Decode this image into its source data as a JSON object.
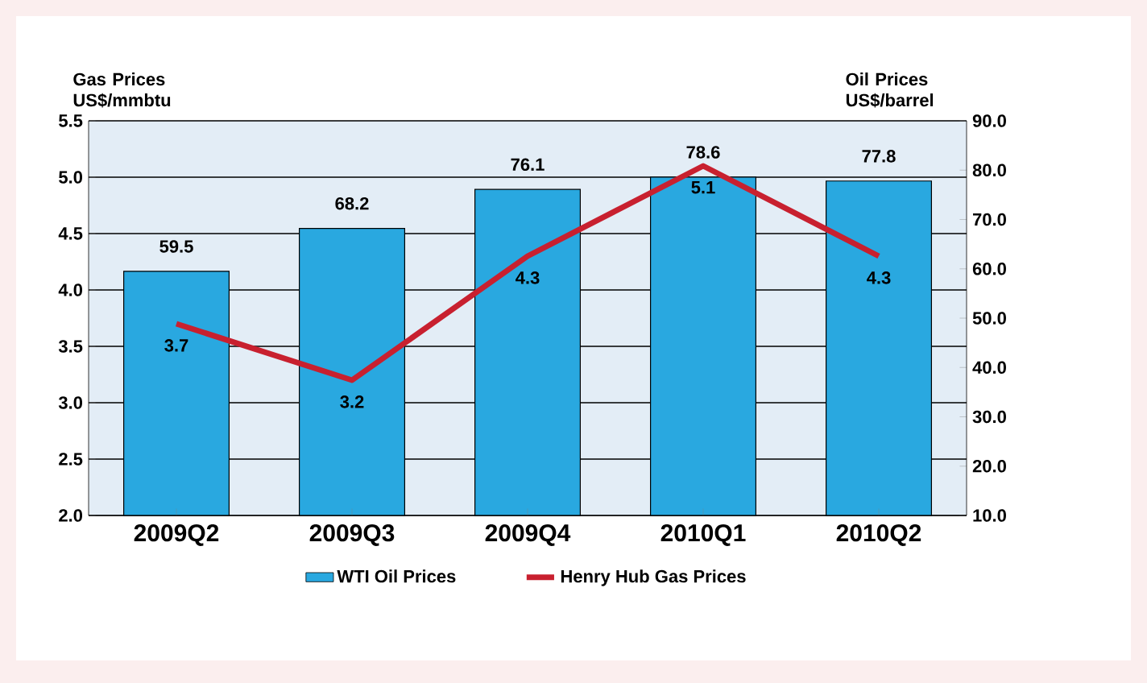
{
  "chart_data": {
    "type": "bar",
    "categories": [
      "2009Q2",
      "2009Q3",
      "2009Q4",
      "2010Q1",
      "2010Q2"
    ],
    "series": [
      {
        "name": "WTI Oil Prices",
        "axis": "y2",
        "color": "#29a8e0",
        "values": [
          59.5,
          68.2,
          76.1,
          78.6,
          77.8
        ]
      },
      {
        "name": "Henry Hub Gas Prices",
        "type": "line",
        "color": "#c8202f",
        "values": [
          3.7,
          3.2,
          4.3,
          5.1,
          4.3
        ]
      }
    ],
    "ylabel": "Gas Prices US$/mmbtu",
    "y2label": "Oil Prices US$/barrel",
    "ylim": [
      2.0,
      5.5
    ],
    "yticks": [
      {
        "value": 2.0,
        "label": "2.0"
      },
      {
        "value": 2.5,
        "label": "2.5"
      },
      {
        "value": 3.0,
        "label": "3.0"
      },
      {
        "value": 3.5,
        "label": "3.5"
      },
      {
        "value": 4.0,
        "label": "4.0"
      },
      {
        "value": 4.5,
        "label": "4.5"
      },
      {
        "value": 5.0,
        "label": "5.0"
      },
      {
        "value": 5.5,
        "label": "5.5"
      }
    ],
    "y2lim": [
      10.0,
      90.0
    ],
    "y2ticks": [
      {
        "value": 10,
        "label": "10.0"
      },
      {
        "value": 20,
        "label": "20.0"
      },
      {
        "value": 30,
        "label": "30.0"
      },
      {
        "value": 40,
        "label": "40.0"
      },
      {
        "value": 50,
        "label": "50.0"
      },
      {
        "value": 60,
        "label": "60.0"
      },
      {
        "value": 70,
        "label": "70.0"
      },
      {
        "value": 80,
        "label": "80.0"
      },
      {
        "value": 90,
        "label": "90.0"
      }
    ],
    "grid": "y",
    "legend": "bottom",
    "data_labels": true,
    "marker": "none",
    "line_style": "solid"
  }
}
